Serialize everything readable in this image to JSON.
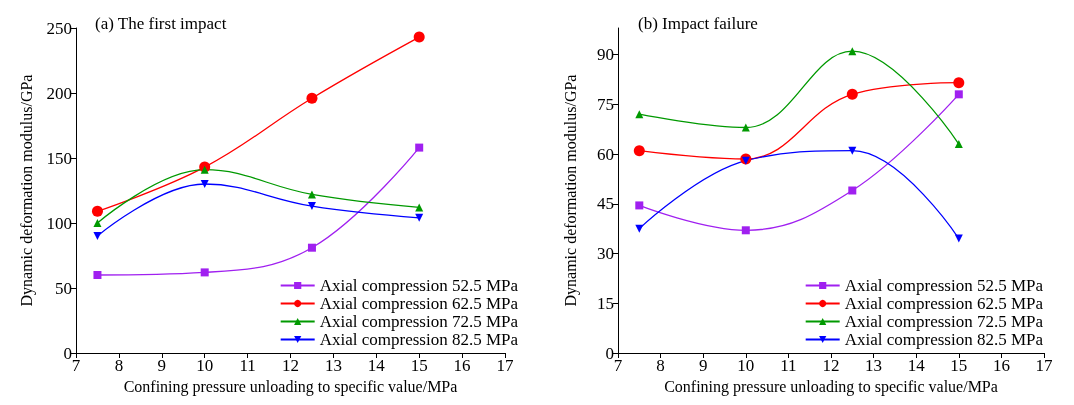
{
  "chart_data": [
    {
      "type": "line",
      "title": "(a) The first impact",
      "xlabel": "Confining pressure unloading to specific value/MPa",
      "ylabel": "Dynamic deformation modulus/GPa",
      "x": [
        7.5,
        10,
        12.5,
        15
      ],
      "xlim": [
        7,
        17
      ],
      "xticks": [
        7,
        8,
        9,
        10,
        11,
        12,
        13,
        14,
        15,
        16,
        17
      ],
      "ylim": [
        0,
        250
      ],
      "yticks": [
        0,
        50,
        100,
        150,
        200,
        250
      ],
      "grid": false,
      "legend": "bottom right",
      "series": [
        {
          "name": "Axial compression 52.5 MPa",
          "color": "#a020f0",
          "marker": "square",
          "values": [
            60,
            62,
            81,
            158
          ]
        },
        {
          "name": "Axial compression 62.5 MPa",
          "color": "#ff0000",
          "marker": "circle",
          "values": [
            109,
            143,
            196,
            243
          ]
        },
        {
          "name": "Axial compression 72.5 MPa",
          "color": "#009900",
          "marker": "triangle",
          "values": [
            100,
            141,
            122,
            112
          ]
        },
        {
          "name": "Axial compression 82.5 MPa",
          "color": "#0000ff",
          "marker": "triangle-down",
          "values": [
            90,
            130,
            113,
            104
          ]
        }
      ]
    },
    {
      "type": "line",
      "title": "(b) Impact failure",
      "xlabel": "Confining pressure unloading to specific value/MPa",
      "ylabel": "Dynamic deformation modulus/GPa",
      "x": [
        7.5,
        10,
        12.5,
        15
      ],
      "xlim": [
        7,
        17
      ],
      "xticks": [
        7,
        8,
        9,
        10,
        11,
        12,
        13,
        14,
        15,
        16,
        17
      ],
      "ylim": [
        0,
        98
      ],
      "yticks": [
        0,
        15,
        30,
        45,
        60,
        75,
        90
      ],
      "grid": false,
      "legend": "bottom right",
      "series": [
        {
          "name": "Axial compression 52.5 MPa",
          "color": "#a020f0",
          "marker": "square",
          "values": [
            44.5,
            37,
            49,
            78
          ]
        },
        {
          "name": "Axial compression 62.5 MPa",
          "color": "#ff0000",
          "marker": "circle",
          "values": [
            61,
            58.5,
            78,
            81.5
          ]
        },
        {
          "name": "Axial compression 72.5 MPa",
          "color": "#009900",
          "marker": "triangle",
          "values": [
            72,
            68,
            91,
            63
          ]
        },
        {
          "name": "Axial compression 82.5 MPa",
          "color": "#0000ff",
          "marker": "triangle-down",
          "values": [
            37.5,
            58,
            61,
            34.5
          ]
        }
      ]
    }
  ]
}
